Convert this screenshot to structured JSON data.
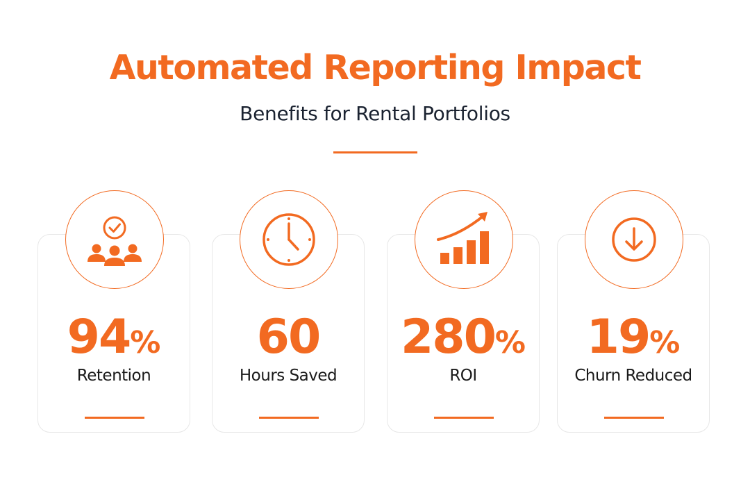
{
  "title": "Automated Reporting Impact",
  "subtitle": "Benefits for Rental Portfolios",
  "accent_color": "#f26a21",
  "text_color": "#1a1a1a",
  "cards": [
    {
      "icon": "people-check-icon",
      "value": "94",
      "unit": "%",
      "label": "Retention"
    },
    {
      "icon": "clock-icon",
      "value": "60",
      "unit": "",
      "label": "Hours Saved"
    },
    {
      "icon": "growth-chart-icon",
      "value": "280",
      "unit": "%",
      "label": "ROI"
    },
    {
      "icon": "arrow-down-circle-icon",
      "value": "19",
      "unit": "%",
      "label": "Churn Reduced"
    }
  ]
}
